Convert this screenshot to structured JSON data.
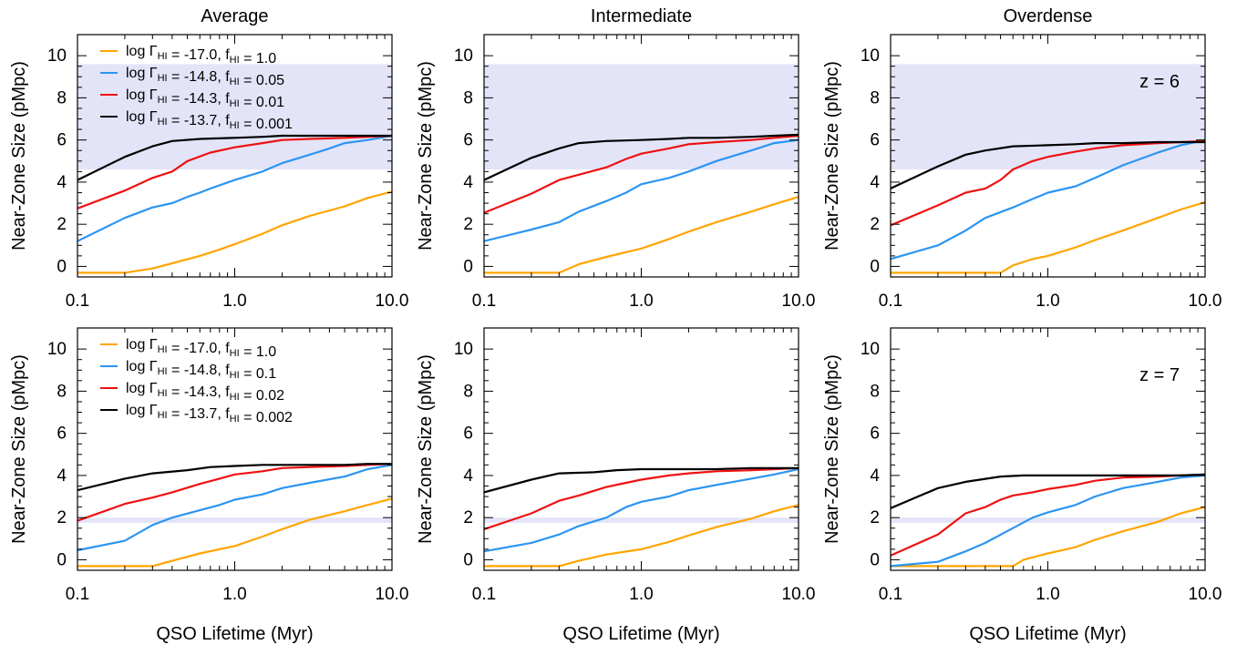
{
  "figure": {
    "column_titles": [
      "Average",
      "Intermediate",
      "Overdense"
    ],
    "xlabel": "QSO Lifetime (Myr)",
    "ylabel": "Near-Zone Size (pMpc)",
    "x_tick_labels": [
      "0.1",
      "1.0",
      "10.0"
    ],
    "y_tick_labels": [
      "0",
      "2",
      "4",
      "6",
      "8",
      "10"
    ],
    "colors": {
      "orange": "#ffa500",
      "blue": "#2b95f2",
      "red": "#ee1111",
      "black": "#000000",
      "band": "#e3e4f8"
    }
  },
  "chart_data": [
    {
      "type": "line",
      "row": 0,
      "col": 0,
      "title": "Average",
      "xscale": "log",
      "xlim": [
        0.1,
        10.0
      ],
      "ylim": [
        -0.5,
        11
      ],
      "band": [
        4.6,
        9.6
      ],
      "legend": [
        {
          "text": "log ΓHI = -17.0, fHI = 1.0",
          "parts": [
            [
              "log Γ",
              ""
            ],
            [
              "HI",
              "sub"
            ],
            [
              " = -17.0, f",
              ""
            ],
            [
              "HI",
              "sub"
            ],
            [
              " = 1.0",
              ""
            ]
          ],
          "color": "#ffa500"
        },
        {
          "text": "log ΓHI = -14.8, fHI = 0.05",
          "parts": [
            [
              "log Γ",
              ""
            ],
            [
              "HI",
              "sub"
            ],
            [
              " = -14.8, f",
              ""
            ],
            [
              "HI",
              "sub"
            ],
            [
              " = 0.05",
              ""
            ]
          ],
          "color": "#2b95f2"
        },
        {
          "text": "log ΓHI = -14.3, fHI = 0.01",
          "parts": [
            [
              "log Γ",
              ""
            ],
            [
              "HI",
              "sub"
            ],
            [
              " = -14.3, f",
              ""
            ],
            [
              "HI",
              "sub"
            ],
            [
              " = 0.01",
              ""
            ]
          ],
          "color": "#ee1111"
        },
        {
          "text": "log ΓHI = -13.7, fHI = 0.001",
          "parts": [
            [
              "log Γ",
              ""
            ],
            [
              "HI",
              "sub"
            ],
            [
              " = -13.7, f",
              ""
            ],
            [
              "HI",
              "sub"
            ],
            [
              " = 0.001",
              ""
            ]
          ],
          "color": "#000000"
        }
      ],
      "series": [
        {
          "color": "#ffa500",
          "x": [
            0.1,
            0.2,
            0.3,
            0.4,
            0.6,
            0.8,
            1.0,
            1.5,
            2,
            3,
            5,
            7,
            10
          ],
          "y": [
            -0.3,
            -0.3,
            -0.1,
            0.15,
            0.5,
            0.8,
            1.05,
            1.55,
            1.95,
            2.4,
            2.85,
            3.25,
            3.55
          ]
        },
        {
          "color": "#2b95f2",
          "x": [
            0.1,
            0.2,
            0.3,
            0.4,
            0.5,
            0.6,
            0.7,
            1.0,
            1.5,
            2,
            3,
            4,
            5,
            7,
            10
          ],
          "y": [
            1.2,
            2.3,
            2.8,
            3.0,
            3.3,
            3.5,
            3.7,
            4.1,
            4.5,
            4.9,
            5.3,
            5.6,
            5.85,
            6.0,
            6.2
          ]
        },
        {
          "color": "#ee1111",
          "x": [
            0.1,
            0.2,
            0.3,
            0.4,
            0.5,
            0.7,
            1.0,
            1.5,
            2,
            3,
            5,
            7,
            10
          ],
          "y": [
            2.75,
            3.6,
            4.2,
            4.5,
            5.0,
            5.4,
            5.65,
            5.85,
            6.0,
            6.05,
            6.1,
            6.15,
            6.2
          ]
        },
        {
          "color": "#000000",
          "x": [
            0.1,
            0.2,
            0.3,
            0.4,
            0.6,
            1.0,
            1.5,
            2,
            3,
            5,
            7,
            10
          ],
          "y": [
            4.1,
            5.2,
            5.7,
            5.95,
            6.05,
            6.1,
            6.15,
            6.2,
            6.2,
            6.2,
            6.2,
            6.2
          ]
        }
      ]
    },
    {
      "type": "line",
      "row": 0,
      "col": 1,
      "title": "Intermediate",
      "xscale": "log",
      "xlim": [
        0.1,
        10.0
      ],
      "ylim": [
        -0.5,
        11
      ],
      "band": [
        4.6,
        9.6
      ],
      "series": [
        {
          "color": "#ffa500",
          "x": [
            0.1,
            0.3,
            0.4,
            0.6,
            1.0,
            1.5,
            2,
            3,
            5,
            7,
            10
          ],
          "y": [
            -0.3,
            -0.3,
            0.1,
            0.45,
            0.85,
            1.3,
            1.65,
            2.1,
            2.6,
            2.95,
            3.3
          ]
        },
        {
          "color": "#2b95f2",
          "x": [
            0.1,
            0.2,
            0.3,
            0.4,
            0.6,
            0.8,
            1.0,
            1.5,
            2,
            3,
            5,
            7,
            10
          ],
          "y": [
            1.2,
            1.75,
            2.1,
            2.6,
            3.1,
            3.5,
            3.9,
            4.2,
            4.5,
            5.0,
            5.5,
            5.85,
            6.0
          ]
        },
        {
          "color": "#ee1111",
          "x": [
            0.1,
            0.2,
            0.3,
            0.4,
            0.6,
            0.8,
            1.0,
            1.5,
            2,
            3,
            5,
            7,
            10
          ],
          "y": [
            2.55,
            3.45,
            4.1,
            4.35,
            4.7,
            5.1,
            5.35,
            5.6,
            5.8,
            5.9,
            6.0,
            6.1,
            6.2
          ]
        },
        {
          "color": "#000000",
          "x": [
            0.1,
            0.2,
            0.3,
            0.4,
            0.6,
            1.0,
            1.5,
            2,
            3,
            5,
            7,
            10
          ],
          "y": [
            4.1,
            5.15,
            5.6,
            5.85,
            5.95,
            6.0,
            6.05,
            6.1,
            6.1,
            6.15,
            6.2,
            6.25
          ]
        }
      ]
    },
    {
      "type": "line",
      "row": 0,
      "col": 2,
      "title": "Overdense",
      "xscale": "log",
      "xlim": [
        0.1,
        10.0
      ],
      "ylim": [
        -0.5,
        11
      ],
      "band": [
        4.6,
        9.6
      ],
      "annotation": "z = 6",
      "series": [
        {
          "color": "#ffa500",
          "x": [
            0.1,
            0.5,
            0.6,
            0.8,
            1.0,
            1.5,
            2,
            3,
            5,
            7,
            10
          ],
          "y": [
            -0.3,
            -0.3,
            0.05,
            0.35,
            0.5,
            0.9,
            1.25,
            1.7,
            2.3,
            2.7,
            3.05
          ]
        },
        {
          "color": "#2b95f2",
          "x": [
            0.1,
            0.2,
            0.3,
            0.4,
            0.6,
            0.8,
            1.0,
            1.5,
            2,
            3,
            5,
            7,
            10
          ],
          "y": [
            0.35,
            1.0,
            1.7,
            2.3,
            2.8,
            3.2,
            3.5,
            3.8,
            4.2,
            4.8,
            5.4,
            5.75,
            6.0
          ]
        },
        {
          "color": "#ee1111",
          "x": [
            0.1,
            0.2,
            0.3,
            0.4,
            0.5,
            0.6,
            0.8,
            1.0,
            1.5,
            2,
            3,
            5,
            7,
            10
          ],
          "y": [
            1.95,
            2.9,
            3.5,
            3.7,
            4.1,
            4.6,
            5.0,
            5.2,
            5.45,
            5.6,
            5.75,
            5.85,
            5.9,
            5.95
          ]
        },
        {
          "color": "#000000",
          "x": [
            0.1,
            0.2,
            0.3,
            0.4,
            0.6,
            1.0,
            1.5,
            2,
            3,
            5,
            7,
            10
          ],
          "y": [
            3.7,
            4.75,
            5.3,
            5.5,
            5.7,
            5.75,
            5.8,
            5.85,
            5.85,
            5.9,
            5.9,
            5.9
          ]
        }
      ]
    },
    {
      "type": "line",
      "row": 1,
      "col": 0,
      "title": "",
      "xscale": "log",
      "xlim": [
        0.1,
        10.0
      ],
      "ylim": [
        -0.5,
        11
      ],
      "band": [
        1.75,
        2.0
      ],
      "legend": [
        {
          "text": "log ΓHI = -17.0, fHI = 1.0",
          "parts": [
            [
              "log Γ",
              ""
            ],
            [
              "HI",
              "sub"
            ],
            [
              " = -17.0, f",
              ""
            ],
            [
              "HI",
              "sub"
            ],
            [
              " = 1.0",
              ""
            ]
          ],
          "color": "#ffa500"
        },
        {
          "text": "log ΓHI = -14.8, fHI = 0.1",
          "parts": [
            [
              "log Γ",
              ""
            ],
            [
              "HI",
              "sub"
            ],
            [
              " = -14.8, f",
              ""
            ],
            [
              "HI",
              "sub"
            ],
            [
              " = 0.1",
              ""
            ]
          ],
          "color": "#2b95f2"
        },
        {
          "text": "log ΓHI = -14.3, fHI = 0.02",
          "parts": [
            [
              "log Γ",
              ""
            ],
            [
              "HI",
              "sub"
            ],
            [
              " = -14.3, f",
              ""
            ],
            [
              "HI",
              "sub"
            ],
            [
              " = 0.02",
              ""
            ]
          ],
          "color": "#ee1111"
        },
        {
          "text": "log ΓHI = -13.7, fHI = 0.002",
          "parts": [
            [
              "log Γ",
              ""
            ],
            [
              "HI",
              "sub"
            ],
            [
              " = -13.7, f",
              ""
            ],
            [
              "HI",
              "sub"
            ],
            [
              " = 0.002",
              ""
            ]
          ],
          "color": "#000000"
        }
      ],
      "series": [
        {
          "color": "#ffa500",
          "x": [
            0.1,
            0.3,
            0.4,
            0.6,
            1.0,
            1.5,
            2,
            3,
            5,
            7,
            10
          ],
          "y": [
            -0.3,
            -0.3,
            -0.05,
            0.3,
            0.65,
            1.1,
            1.45,
            1.9,
            2.3,
            2.6,
            2.9
          ]
        },
        {
          "color": "#2b95f2",
          "x": [
            0.1,
            0.2,
            0.3,
            0.4,
            0.6,
            0.8,
            1.0,
            1.5,
            2,
            3,
            5,
            7,
            10
          ],
          "y": [
            0.45,
            0.9,
            1.65,
            2.0,
            2.35,
            2.6,
            2.85,
            3.1,
            3.4,
            3.65,
            3.95,
            4.3,
            4.5
          ]
        },
        {
          "color": "#ee1111",
          "x": [
            0.1,
            0.2,
            0.3,
            0.4,
            0.6,
            0.8,
            1.0,
            1.5,
            2,
            3,
            5,
            7,
            10
          ],
          "y": [
            1.85,
            2.65,
            2.95,
            3.2,
            3.6,
            3.85,
            4.05,
            4.2,
            4.35,
            4.4,
            4.45,
            4.5,
            4.55
          ]
        },
        {
          "color": "#000000",
          "x": [
            0.1,
            0.2,
            0.3,
            0.5,
            0.7,
            1.0,
            1.5,
            2,
            3,
            5,
            7,
            10
          ],
          "y": [
            3.3,
            3.85,
            4.1,
            4.25,
            4.4,
            4.45,
            4.5,
            4.5,
            4.5,
            4.5,
            4.55,
            4.55
          ]
        }
      ]
    },
    {
      "type": "line",
      "row": 1,
      "col": 1,
      "title": "",
      "xscale": "log",
      "xlim": [
        0.1,
        10.0
      ],
      "ylim": [
        -0.5,
        11
      ],
      "band": [
        1.75,
        2.0
      ],
      "series": [
        {
          "color": "#ffa500",
          "x": [
            0.1,
            0.3,
            0.4,
            0.6,
            1.0,
            1.5,
            2,
            3,
            5,
            7,
            10
          ],
          "y": [
            -0.3,
            -0.3,
            -0.05,
            0.25,
            0.5,
            0.85,
            1.15,
            1.55,
            1.95,
            2.3,
            2.6
          ]
        },
        {
          "color": "#2b95f2",
          "x": [
            0.1,
            0.2,
            0.3,
            0.4,
            0.6,
            0.8,
            1.0,
            1.5,
            2,
            3,
            5,
            7,
            10
          ],
          "y": [
            0.4,
            0.8,
            1.2,
            1.6,
            2.0,
            2.5,
            2.75,
            3.0,
            3.3,
            3.55,
            3.85,
            4.05,
            4.3
          ]
        },
        {
          "color": "#ee1111",
          "x": [
            0.1,
            0.2,
            0.3,
            0.4,
            0.6,
            0.8,
            1.0,
            1.5,
            2,
            3,
            5,
            7,
            10
          ],
          "y": [
            1.45,
            2.2,
            2.8,
            3.05,
            3.45,
            3.65,
            3.8,
            4.0,
            4.1,
            4.2,
            4.25,
            4.3,
            4.35
          ]
        },
        {
          "color": "#000000",
          "x": [
            0.1,
            0.2,
            0.3,
            0.5,
            0.7,
            1.0,
            1.5,
            2,
            3,
            5,
            7,
            10
          ],
          "y": [
            3.2,
            3.8,
            4.1,
            4.15,
            4.25,
            4.3,
            4.3,
            4.3,
            4.3,
            4.35,
            4.35,
            4.35
          ]
        }
      ]
    },
    {
      "type": "line",
      "row": 1,
      "col": 2,
      "title": "",
      "xscale": "log",
      "xlim": [
        0.1,
        10.0
      ],
      "ylim": [
        -0.5,
        11
      ],
      "band": [
        1.75,
        2.0
      ],
      "annotation": "z = 7",
      "series": [
        {
          "color": "#ffa500",
          "x": [
            0.1,
            0.6,
            0.7,
            1.0,
            1.5,
            2,
            3,
            5,
            7,
            10
          ],
          "y": [
            -0.3,
            -0.3,
            0.0,
            0.3,
            0.6,
            0.95,
            1.35,
            1.8,
            2.2,
            2.5
          ]
        },
        {
          "color": "#2b95f2",
          "x": [
            0.1,
            0.2,
            0.3,
            0.4,
            0.6,
            0.8,
            1.0,
            1.5,
            2,
            3,
            5,
            7,
            10
          ],
          "y": [
            -0.3,
            -0.1,
            0.4,
            0.8,
            1.5,
            2.0,
            2.25,
            2.6,
            3.0,
            3.4,
            3.7,
            3.9,
            4.0
          ]
        },
        {
          "color": "#ee1111",
          "x": [
            0.1,
            0.2,
            0.3,
            0.4,
            0.5,
            0.6,
            0.8,
            1.0,
            1.5,
            2,
            3,
            5,
            7,
            10
          ],
          "y": [
            0.2,
            1.2,
            2.2,
            2.5,
            2.85,
            3.05,
            3.2,
            3.35,
            3.55,
            3.75,
            3.9,
            3.95,
            4.0,
            4.05
          ]
        },
        {
          "color": "#000000",
          "x": [
            0.1,
            0.2,
            0.3,
            0.5,
            0.7,
            1.0,
            1.5,
            2,
            3,
            5,
            7,
            10
          ],
          "y": [
            2.45,
            3.4,
            3.7,
            3.95,
            4.0,
            4.0,
            4.0,
            4.0,
            4.0,
            4.0,
            4.0,
            4.05
          ]
        }
      ]
    }
  ]
}
